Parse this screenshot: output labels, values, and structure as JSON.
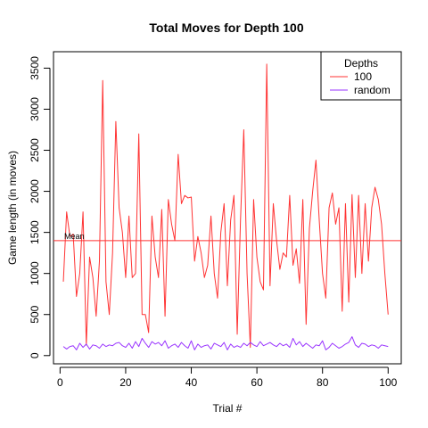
{
  "chart_data": {
    "type": "line",
    "title": "Total Moves for Depth 100",
    "xlabel": "Trial #",
    "ylabel": "Game length (in moves)",
    "xlim": [
      -2,
      104
    ],
    "ylim": [
      -100,
      3700
    ],
    "xticks": [
      0,
      20,
      40,
      60,
      80,
      100
    ],
    "yticks": [
      0,
      500,
      1000,
      1500,
      2000,
      2500,
      3000,
      3500
    ],
    "grid": false,
    "legend": {
      "title": "Depths",
      "position": "top-right"
    },
    "series": [
      {
        "name": "100",
        "color": "#ff3333",
        "x": [
          1,
          2,
          3,
          4,
          5,
          6,
          7,
          8,
          9,
          10,
          11,
          12,
          13,
          14,
          15,
          16,
          17,
          18,
          19,
          20,
          21,
          22,
          23,
          24,
          25,
          26,
          27,
          28,
          29,
          30,
          31,
          32,
          33,
          34,
          35,
          36,
          37,
          38,
          39,
          40,
          41,
          42,
          43,
          44,
          45,
          46,
          47,
          48,
          49,
          50,
          51,
          52,
          53,
          54,
          55,
          56,
          57,
          58,
          59,
          60,
          61,
          62,
          63,
          64,
          65,
          66,
          67,
          68,
          69,
          70,
          71,
          72,
          73,
          74,
          75,
          76,
          77,
          78,
          79,
          80,
          81,
          82,
          83,
          84,
          85,
          86,
          87,
          88,
          89,
          90,
          91,
          92,
          93,
          94,
          95,
          96,
          97,
          98,
          99,
          100
        ],
        "values": [
          900,
          1750,
          1450,
          1480,
          720,
          1000,
          1750,
          130,
          1200,
          950,
          480,
          1150,
          3350,
          900,
          500,
          1250,
          2850,
          1800,
          1500,
          950,
          1700,
          950,
          1000,
          2700,
          500,
          500,
          280,
          1700,
          1200,
          950,
          1780,
          480,
          1900,
          1600,
          1400,
          2450,
          1850,
          1950,
          1920,
          1930,
          1150,
          1450,
          1250,
          950,
          1100,
          1700,
          1000,
          700,
          1500,
          1850,
          850,
          1650,
          1950,
          260,
          1650,
          2750,
          1000,
          100,
          1900,
          1200,
          900,
          800,
          3550,
          850,
          1850,
          1400,
          1050,
          1250,
          1200,
          1950,
          1100,
          1300,
          880,
          1900,
          380,
          1550,
          2000,
          2380,
          1650,
          1000,
          700,
          1800,
          1980,
          1600,
          1800,
          540,
          1850,
          650,
          1960,
          950,
          1950,
          1000,
          1850,
          1150,
          1800,
          2050,
          1900,
          1600,
          1000,
          500
        ]
      },
      {
        "name": "random",
        "color": "#9933ff",
        "x": [
          1,
          2,
          3,
          4,
          5,
          6,
          7,
          8,
          9,
          10,
          11,
          12,
          13,
          14,
          15,
          16,
          17,
          18,
          19,
          20,
          21,
          22,
          23,
          24,
          25,
          26,
          27,
          28,
          29,
          30,
          31,
          32,
          33,
          34,
          35,
          36,
          37,
          38,
          39,
          40,
          41,
          42,
          43,
          44,
          45,
          46,
          47,
          48,
          49,
          50,
          51,
          52,
          53,
          54,
          55,
          56,
          57,
          58,
          59,
          60,
          61,
          62,
          63,
          64,
          65,
          66,
          67,
          68,
          69,
          70,
          71,
          72,
          73,
          74,
          75,
          76,
          77,
          78,
          79,
          80,
          81,
          82,
          83,
          84,
          85,
          86,
          87,
          88,
          89,
          90,
          91,
          92,
          93,
          94,
          95,
          96,
          97,
          98,
          99,
          100
        ],
        "values": [
          110,
          80,
          110,
          120,
          70,
          150,
          100,
          140,
          80,
          130,
          120,
          90,
          140,
          110,
          130,
          120,
          150,
          160,
          120,
          100,
          150,
          90,
          170,
          110,
          210,
          150,
          100,
          170,
          140,
          160,
          120,
          180,
          90,
          120,
          140,
          100,
          160,
          120,
          90,
          180,
          70,
          140,
          100,
          120,
          130,
          80,
          150,
          130,
          110,
          160,
          70,
          140,
          100,
          120,
          100,
          150,
          120,
          160,
          130,
          110,
          170,
          120,
          140,
          160,
          130,
          110,
          150,
          120,
          140,
          100,
          210,
          130,
          170,
          110,
          150,
          120,
          90,
          130,
          120,
          180,
          70,
          100,
          150,
          120,
          90,
          110,
          140,
          160,
          230,
          130,
          100,
          150,
          140,
          110,
          130,
          120,
          90,
          130,
          120,
          110
        ]
      }
    ],
    "hlines": [
      {
        "label": "Mean",
        "value": 1400,
        "color": "#ff3333"
      }
    ]
  }
}
